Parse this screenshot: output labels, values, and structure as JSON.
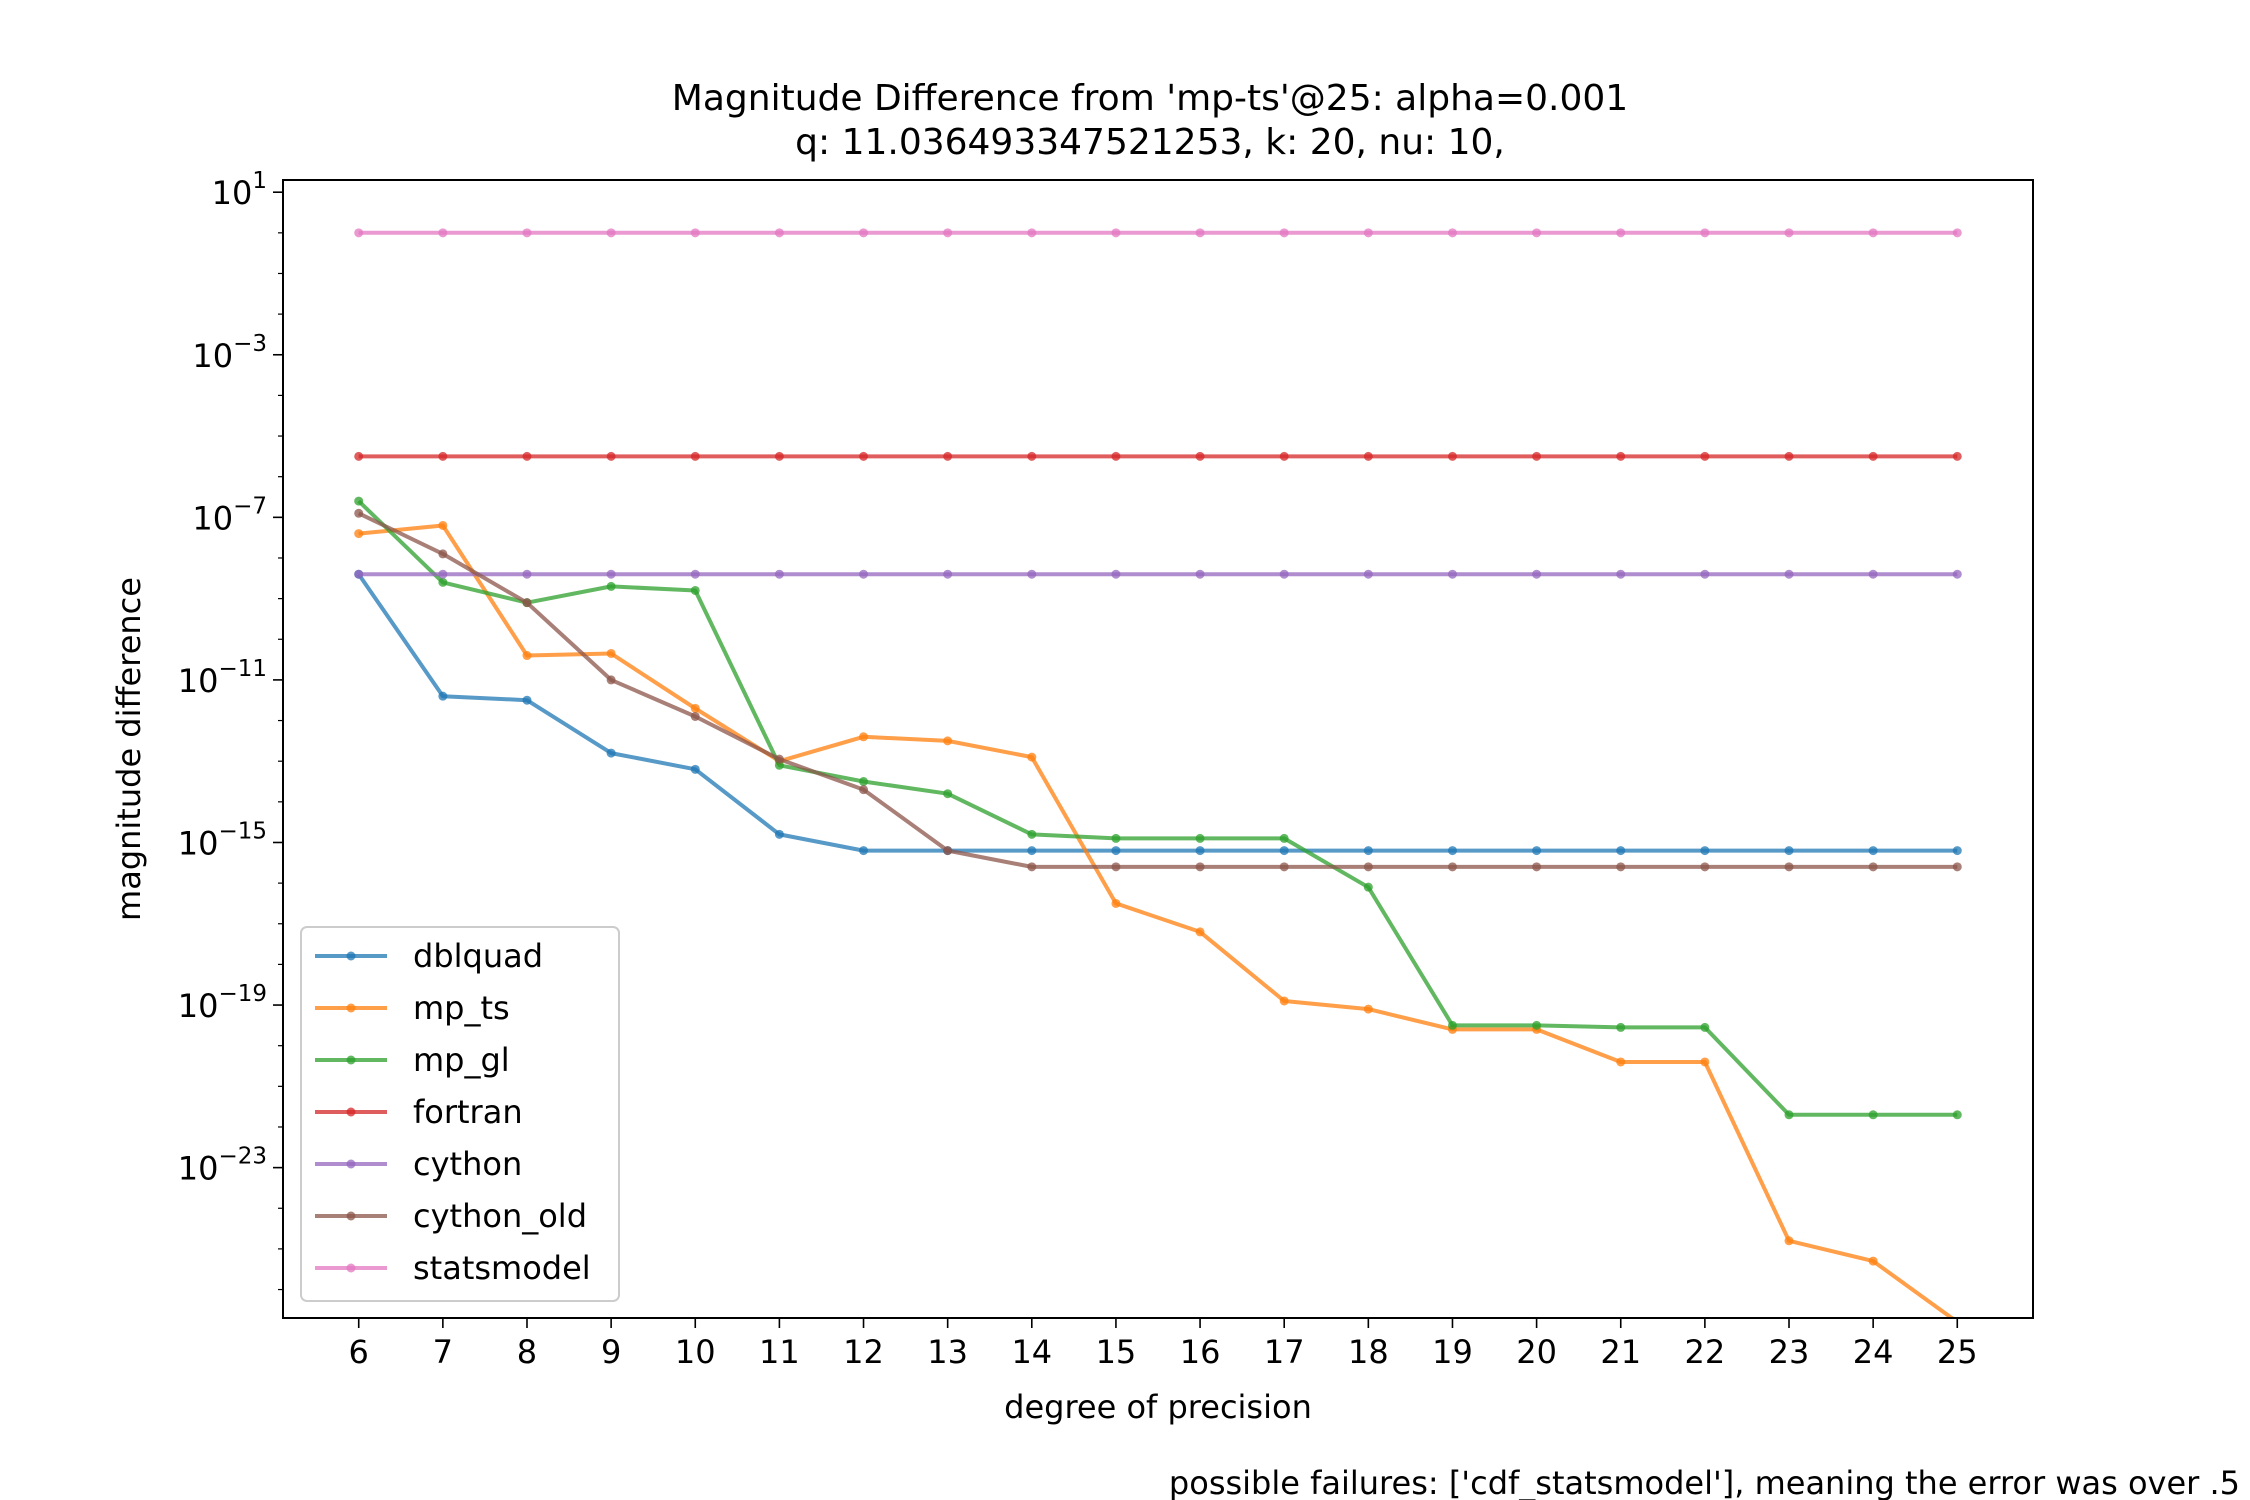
{
  "chart_data": {
    "type": "line",
    "title_line1": "Magnitude Difference from 'mp-ts'@25: alpha=0.001",
    "title_line2": "q: 11.036493347521253, k: 20, nu: 10,",
    "xlabel": "degree of precision",
    "ylabel": "magnitude difference",
    "footnote": "possible failures: ['cdf_statsmodel'], meaning the error was over .5",
    "yscale": "log",
    "x": [
      6,
      7,
      8,
      9,
      10,
      11,
      12,
      13,
      14,
      15,
      16,
      17,
      18,
      19,
      20,
      21,
      22,
      23,
      24,
      25
    ],
    "x_ticks": [
      "6",
      "7",
      "8",
      "9",
      "10",
      "11",
      "12",
      "13",
      "14",
      "15",
      "16",
      "17",
      "18",
      "19",
      "20",
      "21",
      "22",
      "23",
      "24",
      "25"
    ],
    "xlim": [
      5.1,
      25.9
    ],
    "ylim_exp": [
      -26.7,
      1.3
    ],
    "y_ticks": [
      {
        "base": "10",
        "exp": "1",
        "value_exp": 1
      },
      {
        "base": "10",
        "exp": "−3",
        "value_exp": -3
      },
      {
        "base": "10",
        "exp": "−7",
        "value_exp": -7
      },
      {
        "base": "10",
        "exp": "−11",
        "value_exp": -11
      },
      {
        "base": "10",
        "exp": "−15",
        "value_exp": -15
      },
      {
        "base": "10",
        "exp": "−19",
        "value_exp": -19
      },
      {
        "base": "10",
        "exp": "−23",
        "value_exp": -23
      }
    ],
    "legend_position": "lower left",
    "series": [
      {
        "name": "dblquad",
        "color": "#1f77b4",
        "log10_values": [
          -8.4,
          -11.4,
          -11.5,
          -12.8,
          -13.2,
          -14.8,
          -15.2,
          -15.2,
          -15.2,
          -15.2,
          -15.2,
          -15.2,
          -15.2,
          -15.2,
          -15.2,
          -15.2,
          -15.2,
          -15.2,
          -15.2,
          -15.2
        ]
      },
      {
        "name": "mp_ts",
        "color": "#ff7f0e",
        "log10_values": [
          -7.4,
          -7.2,
          -10.4,
          -10.35,
          -11.7,
          -13.0,
          -12.4,
          -12.5,
          -12.9,
          -16.5,
          -17.2,
          -18.9,
          -19.1,
          -19.6,
          -19.6,
          -20.4,
          -20.4,
          -24.8,
          -25.3,
          null
        ]
      },
      {
        "name": "mp_gl",
        "color": "#2ca02c",
        "log10_values": [
          -6.6,
          -8.6,
          -9.1,
          -8.7,
          -8.8,
          -13.1,
          -13.5,
          -13.8,
          -14.8,
          -14.9,
          -14.9,
          -14.9,
          -16.1,
          -19.5,
          -19.5,
          -19.55,
          -19.55,
          -21.7,
          -21.7,
          -21.7
        ]
      },
      {
        "name": "fortran",
        "color": "#d62728",
        "log10_values": [
          -5.5,
          -5.5,
          -5.5,
          -5.5,
          -5.5,
          -5.5,
          -5.5,
          -5.5,
          -5.5,
          -5.5,
          -5.5,
          -5.5,
          -5.5,
          -5.5,
          -5.5,
          -5.5,
          -5.5,
          -5.5,
          -5.5,
          -5.5
        ]
      },
      {
        "name": "cython",
        "color": "#9467bd",
        "log10_values": [
          -8.4,
          -8.4,
          -8.4,
          -8.4,
          -8.4,
          -8.4,
          -8.4,
          -8.4,
          -8.4,
          -8.4,
          -8.4,
          -8.4,
          -8.4,
          -8.4,
          -8.4,
          -8.4,
          -8.4,
          -8.4,
          -8.4,
          -8.4
        ]
      },
      {
        "name": "cython_old",
        "color": "#8c564b",
        "log10_values": [
          -6.9,
          -7.9,
          -9.1,
          -11.0,
          -11.9,
          -12.95,
          -13.7,
          -15.2,
          -15.6,
          -15.6,
          -15.6,
          -15.6,
          -15.6,
          -15.6,
          -15.6,
          -15.6,
          -15.6,
          -15.6,
          -15.6,
          -15.6
        ]
      },
      {
        "name": "statsmodel",
        "color": "#e377c2",
        "log10_values": [
          0.0,
          0.0,
          0.0,
          0.0,
          0.0,
          0.0,
          0.0,
          0.0,
          0.0,
          0.0,
          0.0,
          0.0,
          0.0,
          0.0,
          0.0,
          0.0,
          0.0,
          0.0,
          0.0,
          0.0
        ]
      }
    ]
  }
}
